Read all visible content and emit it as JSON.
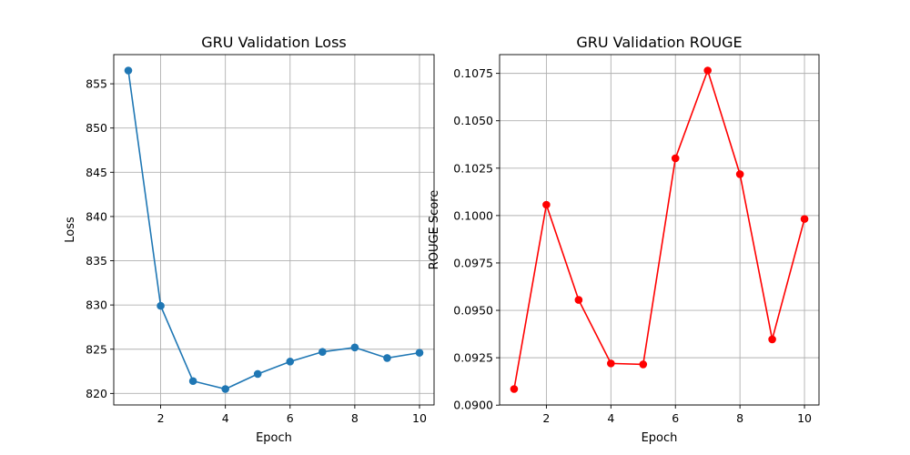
{
  "chart_data": [
    {
      "type": "line",
      "title": "GRU Validation Loss",
      "xlabel": "Epoch",
      "ylabel": "Loss",
      "x": [
        1,
        2,
        3,
        4,
        5,
        6,
        7,
        8,
        9,
        10
      ],
      "series": [
        {
          "values": [
            856.5,
            829.9,
            821.4,
            820.5,
            822.2,
            823.6,
            824.7,
            825.2,
            824.0,
            824.6
          ],
          "color": "#1f77b4",
          "marker": "circle"
        }
      ],
      "xticks": [
        2,
        4,
        6,
        8,
        10
      ],
      "xtick_labels": [
        "2",
        "4",
        "6",
        "8",
        "10"
      ],
      "yticks": [
        820,
        825,
        830,
        835,
        840,
        845,
        850,
        855
      ],
      "ytick_labels": [
        "820",
        "825",
        "830",
        "835",
        "840",
        "845",
        "850",
        "855"
      ],
      "xlim": [
        0.55,
        10.45
      ],
      "ylim": [
        818.7,
        858.3
      ],
      "grid": true
    },
    {
      "type": "line",
      "title": "GRU Validation ROUGE",
      "xlabel": "Epoch",
      "ylabel": "ROUGE Score",
      "x": [
        1,
        2,
        3,
        4,
        5,
        6,
        7,
        8,
        9,
        10
      ],
      "series": [
        {
          "values": [
            0.09085,
            0.10057,
            0.09555,
            0.0922,
            0.09215,
            0.10302,
            0.10765,
            0.10218,
            0.09347,
            0.09982
          ],
          "color": "#ff0000",
          "marker": "circle"
        }
      ],
      "xticks": [
        2,
        4,
        6,
        8,
        10
      ],
      "xtick_labels": [
        "2",
        "4",
        "6",
        "8",
        "10"
      ],
      "yticks": [
        0.09,
        0.0925,
        0.095,
        0.0975,
        0.1,
        0.1025,
        0.105,
        0.1075
      ],
      "ytick_labels": [
        "0.0900",
        "0.0925",
        "0.0950",
        "0.0975",
        "0.1000",
        "0.1025",
        "0.1050",
        "0.1075"
      ],
      "xlim": [
        0.55,
        10.45
      ],
      "ylim": [
        0.09001,
        0.10849
      ],
      "grid": true
    }
  ]
}
